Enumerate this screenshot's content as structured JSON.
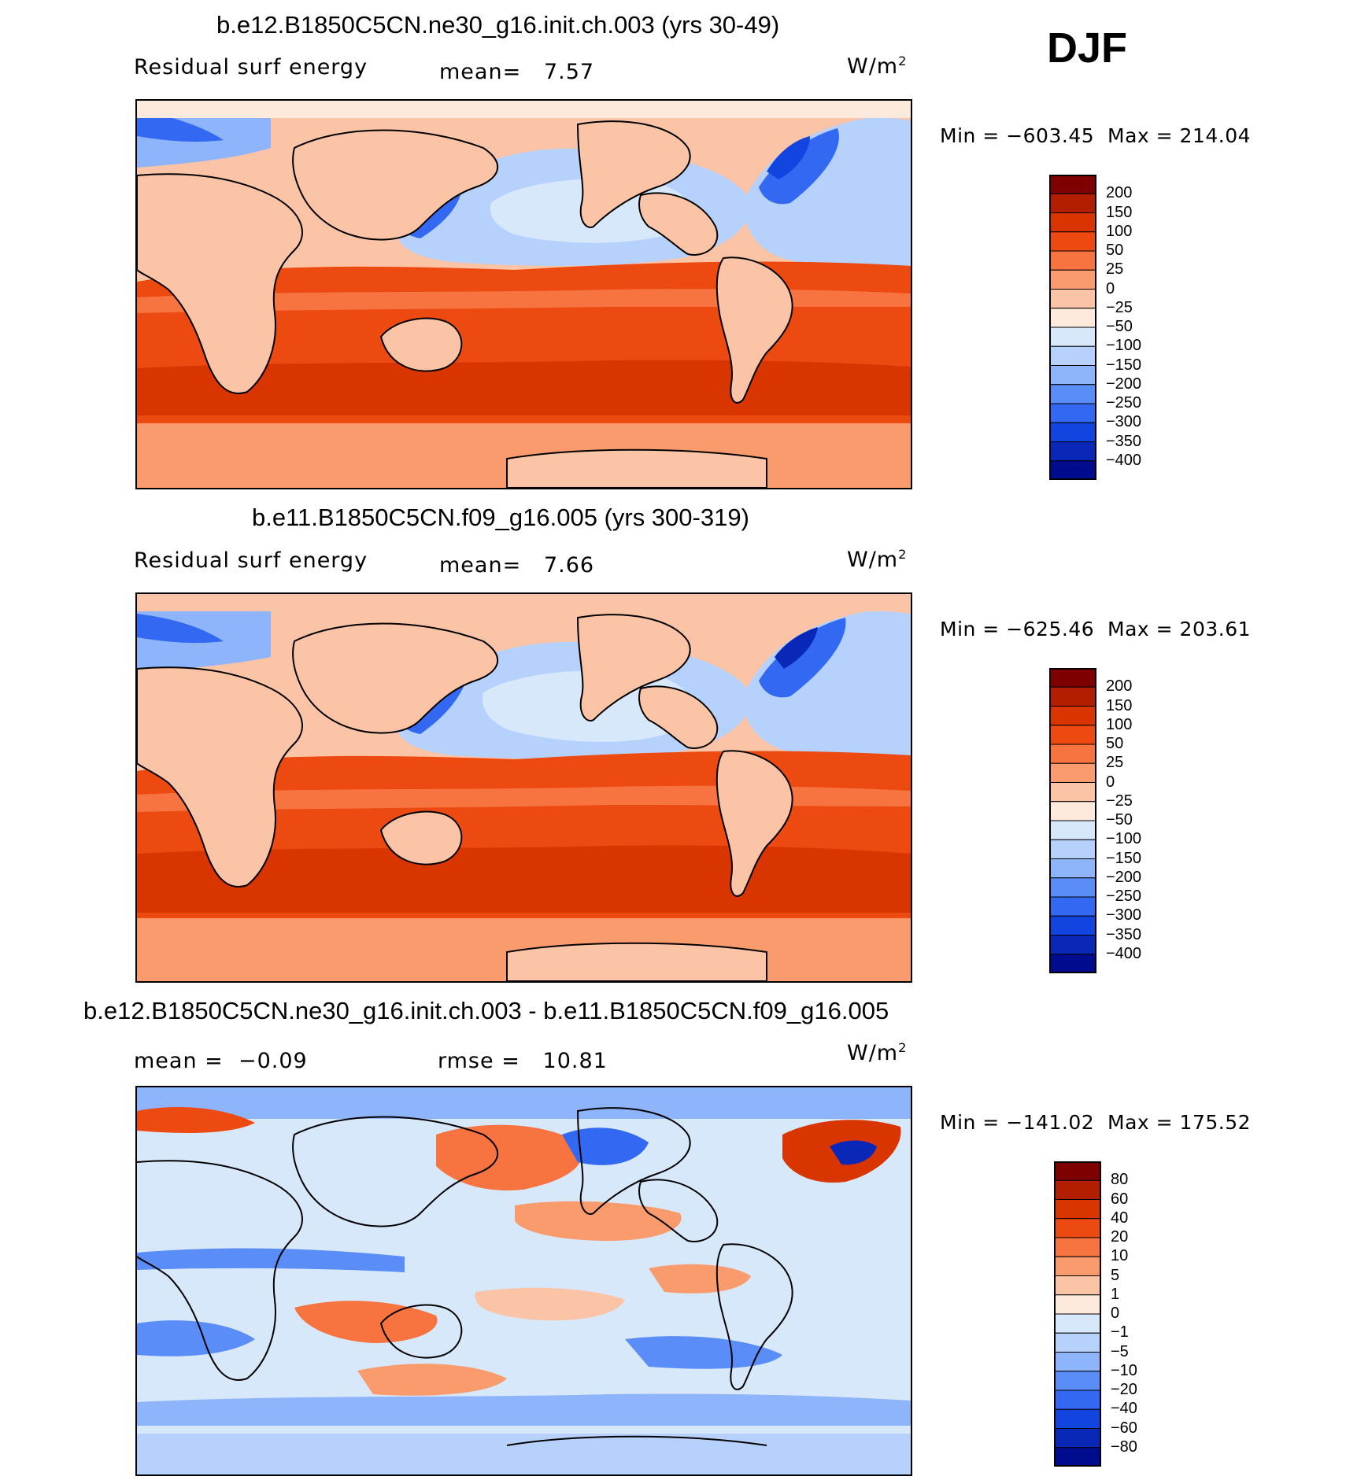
{
  "season": "DJF",
  "units_base": "W/m",
  "units_exp": "2",
  "panels": [
    {
      "id": "top",
      "title": "b.e12.B1850C5CN.ne30_g16.init.ch.003 (yrs 30-49)",
      "left_label": "Residual surf energy",
      "stat_text": "mean=   7.57",
      "minmax": "Min = −603.45  Max = 214.04",
      "colorbar": {
        "colors": [
          "#7f0000",
          "#b31d00",
          "#d93500",
          "#ec4a10",
          "#f77340",
          "#fa9b6e",
          "#fcc4a6",
          "#feeadc",
          "#d8e8fb",
          "#b6d1fc",
          "#8eb4fb",
          "#5a8df8",
          "#3268f2",
          "#1244e0",
          "#0a28b8",
          "#000c8e"
        ],
        "labels": [
          "200",
          "150",
          "100",
          "50",
          "25",
          "0",
          "−25",
          "−50",
          "−100",
          "−150",
          "−200",
          "−250",
          "−300",
          "−350",
          "−400"
        ]
      }
    },
    {
      "id": "middle",
      "title": "b.e11.B1850C5CN.f09_g16.005 (yrs 300-319)",
      "left_label": "Residual surf energy",
      "stat_text": "mean=   7.66",
      "minmax": "Min = −625.46  Max = 203.61",
      "colorbar": {
        "colors": [
          "#7f0000",
          "#b31d00",
          "#d93500",
          "#ec4a10",
          "#f77340",
          "#fa9b6e",
          "#fcc4a6",
          "#feeadc",
          "#d8e8fb",
          "#b6d1fc",
          "#8eb4fb",
          "#5a8df8",
          "#3268f2",
          "#1244e0",
          "#0a28b8",
          "#000c8e"
        ],
        "labels": [
          "200",
          "150",
          "100",
          "50",
          "25",
          "0",
          "−25",
          "−50",
          "−100",
          "−150",
          "−200",
          "−250",
          "−300",
          "−350",
          "−400"
        ]
      }
    },
    {
      "id": "bottom",
      "title": "b.e12.B1850C5CN.ne30_g16.init.ch.003 - b.e11.B1850C5CN.f09_g16.005",
      "left_label": "mean =  −0.09",
      "stat_text": "rmse =   10.81",
      "minmax": "Min = −141.02  Max = 175.52",
      "colorbar": {
        "colors": [
          "#7f0000",
          "#b31d00",
          "#d93500",
          "#ec4a10",
          "#f77340",
          "#fa9b6e",
          "#fcc4a6",
          "#feeadc",
          "#d8e8fb",
          "#b6d1fc",
          "#8eb4fb",
          "#5a8df8",
          "#3268f2",
          "#1244e0",
          "#0a28b8",
          "#000c8e"
        ],
        "labels": [
          "80",
          "60",
          "40",
          "20",
          "10",
          "5",
          "1",
          "0",
          "−1",
          "−5",
          "−10",
          "−20",
          "−40",
          "−60",
          "−80"
        ]
      }
    }
  ]
}
